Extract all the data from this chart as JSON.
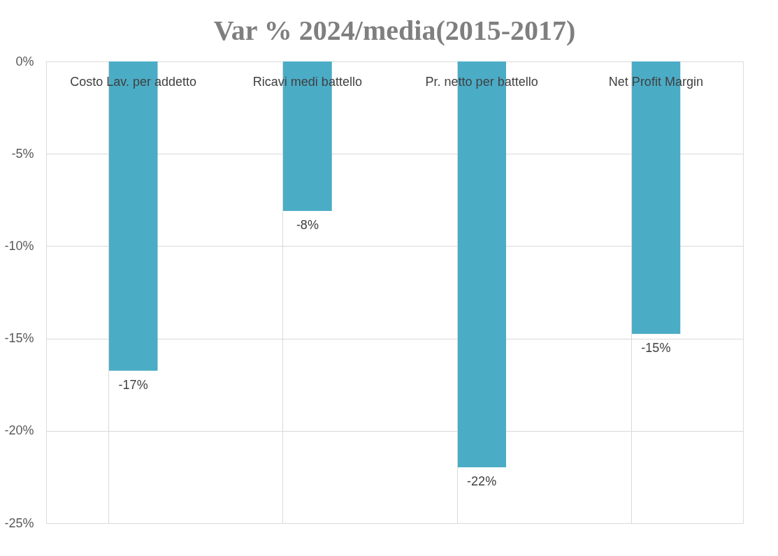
{
  "chart_data": {
    "type": "bar",
    "title": "Var % 2024/media(2015-2017)",
    "categories": [
      "Costo Lav. per addetto",
      "Ricavi medi battello",
      "Pr. netto per battello",
      "Net Profit Margin"
    ],
    "values": [
      -16.75,
      -8.09,
      -21.97,
      -14.75
    ],
    "value_labels": [
      "-17%",
      "-8%",
      "-22%",
      "-15%"
    ],
    "color": "#4bacc6",
    "ylim": [
      -25,
      0
    ],
    "yticks": [
      {
        "value": 0,
        "label": "0%"
      },
      {
        "value": -5,
        "label": "-5%"
      },
      {
        "value": -10,
        "label": "-10%"
      },
      {
        "value": -15,
        "label": "-15%"
      },
      {
        "value": -20,
        "label": "-20%"
      },
      {
        "value": -25,
        "label": "-25%"
      }
    ],
    "grid": true
  }
}
